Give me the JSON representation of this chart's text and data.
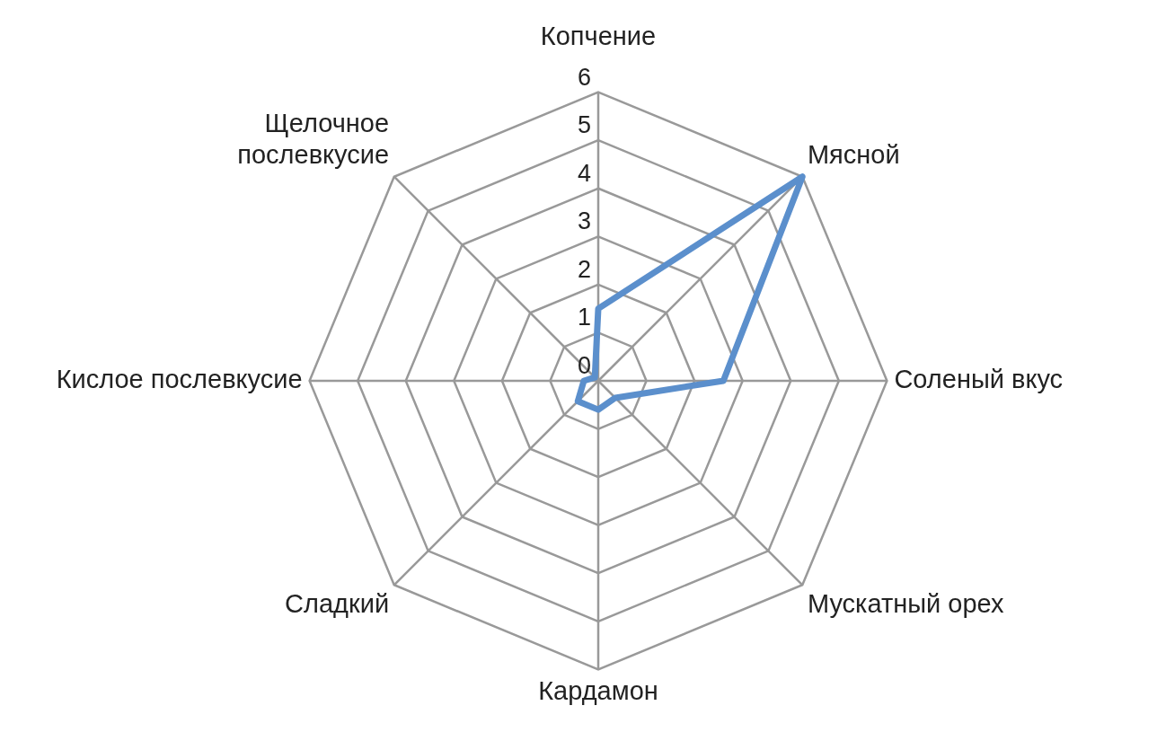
{
  "chart_data": {
    "type": "radar",
    "categories": [
      "Копчение",
      "Мясной",
      "Соленый вкус",
      "Мускатный орех",
      "Кардамон",
      "Сладкий",
      "Кислое послевкусие",
      "Щелочное\nпослевкусие"
    ],
    "series": [
      {
        "color": "#5b8fcc",
        "values": [
          1.5,
          6,
          2.6,
          0.5,
          0.6,
          0.6,
          0.3,
          0.1
        ]
      }
    ],
    "ylim": [
      0,
      6
    ],
    "yticks": [
      0,
      1,
      2,
      3,
      4,
      5,
      6
    ],
    "grid": true,
    "legend": false,
    "marker": "none",
    "line_style": "solid"
  }
}
